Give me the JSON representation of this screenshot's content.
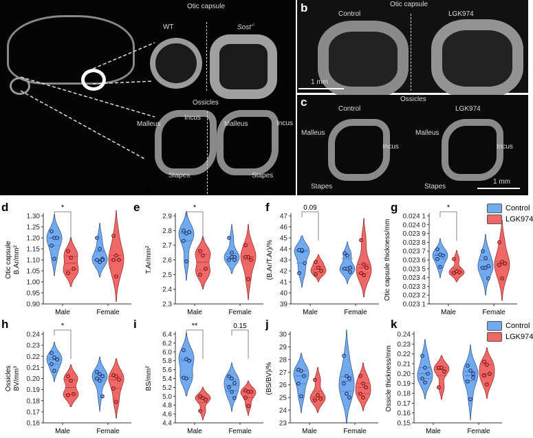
{
  "panels": {
    "a": {
      "label": "a",
      "title_top": "Otic capsule",
      "wt": "WT",
      "sost": "Sost",
      "sost_sup": "-/-",
      "title_bottom": "Ossicles",
      "malleus": "Malleus",
      "incus": "Incus",
      "stapes": "Stapes"
    },
    "b": {
      "label": "b",
      "title": "Otic capsule",
      "control": "Control",
      "lgk": "LGK974",
      "scale": "1 mm"
    },
    "c": {
      "label": "c",
      "title": "Ossicles",
      "control": "Control",
      "lgk": "LGK974",
      "malleus": "Malleus",
      "incus": "Incus",
      "stapes": "Stapes",
      "scale": "1 mm"
    }
  },
  "legend": {
    "control": "Control",
    "lgk": "LGK974",
    "control_color": "#72aaf0",
    "lgk_color": "#ef6868"
  },
  "chart_data": [
    {
      "panel": "d",
      "type": "violin",
      "ylabel": [
        "Otic capsule",
        "B.Ar/mm²"
      ],
      "ylim": [
        0.9,
        1.3
      ],
      "ticks": [
        "0.90",
        "0.95",
        "1.00",
        "1.05",
        "1.10",
        "1.15",
        "1.20",
        "1.25",
        "1.30"
      ],
      "categories": [
        "Male",
        "Female"
      ],
      "series": [
        {
          "name": "Control",
          "values": [
            [
              1.23,
              1.2,
              1.2,
              1.165,
              1.105
            ],
            [
              1.2,
              1.15,
              1.105,
              1.1,
              1.09,
              1.1
            ]
          ]
        },
        {
          "name": "LGK974",
          "values": [
            [
              1.14,
              1.11,
              1.06,
              1.04
            ],
            [
              1.21,
              1.12,
              1.1,
              1.1,
              1.025
            ]
          ]
        }
      ],
      "annotations": [
        {
          "category": "Male",
          "text": "*"
        }
      ]
    },
    {
      "panel": "e",
      "type": "violin",
      "ylabel": [
        "T.Ar/mm²"
      ],
      "ylim": [
        2.3,
        2.9
      ],
      "ticks": [
        "2.3",
        "2.4",
        "2.5",
        "2.6",
        "2.7",
        "2.8",
        "2.9"
      ],
      "categories": [
        "Male",
        "Female"
      ],
      "series": [
        {
          "name": "Control",
          "values": [
            [
              2.8,
              2.78,
              2.79,
              2.73,
              2.59
            ],
            [
              2.75,
              2.65,
              2.62,
              2.6,
              2.62,
              2.6
            ]
          ]
        },
        {
          "name": "LGK974",
          "values": [
            [
              2.66,
              2.63,
              2.54,
              2.5
            ],
            [
              2.7,
              2.62,
              2.6,
              2.62,
              2.47
            ]
          ]
        }
      ],
      "annotations": [
        {
          "category": "Male",
          "text": "*"
        }
      ]
    },
    {
      "panel": "f",
      "type": "violin",
      "ylabel": [
        "(B.Ar/T.Ar)/%"
      ],
      "ylim": [
        39,
        47
      ],
      "ticks": [
        "39",
        "40",
        "41",
        "42",
        "43",
        "44",
        "45",
        "46",
        "47"
      ],
      "categories": [
        "Male",
        "Female"
      ],
      "series": [
        {
          "name": "Control",
          "values": [
            [
              43.9,
              43.8,
              42.7,
              41.8,
              43.9
            ],
            [
              43.6,
              43.4,
              42.3,
              42.2,
              42.2,
              41.9
            ]
          ]
        },
        {
          "name": "LGK974",
          "values": [
            [
              42.8,
              42.3,
              42.0,
              41.7
            ],
            [
              44.8,
              42.6,
              42.3,
              41.8,
              41.6
            ]
          ]
        }
      ],
      "annotations": [
        {
          "category": "Male",
          "text": "0.09"
        }
      ]
    },
    {
      "panel": "g",
      "type": "violin",
      "ylabel": [
        "Otic capsule thickness/mm"
      ],
      "ylim": [
        0.0231,
        0.0241
      ],
      "ticks": [
        "0.023 1",
        "0.023 2",
        "0.023 3",
        "0.023 4",
        "0.023 5",
        "0.023 6",
        "0.023 7",
        "0.023 8",
        "0.023 9",
        "0.024 0",
        "0.024 1"
      ],
      "categories": [
        "Male",
        "Female"
      ],
      "series": [
        {
          "name": "Control",
          "values": [
            [
              0.02372,
              0.02366,
              0.02365,
              0.02361,
              0.02352
            ],
            [
              0.0237,
              0.02362,
              0.02353,
              0.02351,
              0.02351,
              0.02339
            ]
          ]
        },
        {
          "name": "LGK974",
          "values": [
            [
              0.02361,
              0.02347,
              0.02346,
              0.02345
            ],
            [
              0.0238,
              0.02358,
              0.02356,
              0.02354,
              0.02339
            ]
          ]
        }
      ],
      "annotations": [
        {
          "category": "Male",
          "text": "*"
        }
      ],
      "legend": "top-right"
    },
    {
      "panel": "h",
      "type": "violin",
      "ylabel": [
        "Ossicles",
        "BV/mm³"
      ],
      "ylim": [
        0.16,
        0.24
      ],
      "ticks": [
        "0.16",
        "0.17",
        "0.18",
        "0.19",
        "0.20",
        "0.21",
        "0.22",
        "0.23",
        "0.24"
      ],
      "categories": [
        "Male",
        "Female"
      ],
      "series": [
        {
          "name": "Control",
          "values": [
            [
              0.223,
              0.219,
              0.217,
              0.213,
              0.207
            ],
            [
              0.206,
              0.204,
              0.202,
              0.2,
              0.198,
              0.184
            ]
          ]
        },
        {
          "name": "LGK974",
          "values": [
            [
              0.202,
              0.198,
              0.186,
              0.185
            ],
            [
              0.203,
              0.202,
              0.199,
              0.191,
              0.179
            ]
          ]
        }
      ],
      "annotations": [
        {
          "category": "Male",
          "text": "*"
        }
      ]
    },
    {
      "panel": "i",
      "type": "violin",
      "ylabel": [
        "BS/mm²"
      ],
      "ylim": [
        4.4,
        6.4
      ],
      "ticks": [
        "4.4",
        "4.6",
        "4.8",
        "5.0",
        "5.2",
        "5.4",
        "5.6",
        "5.8",
        "6.0",
        "6.2",
        "6.4"
      ],
      "categories": [
        "Male",
        "Female"
      ],
      "series": [
        {
          "name": "Control",
          "values": [
            [
              6.04,
              5.84,
              5.8,
              5.42,
              5.4
            ],
            [
              5.45,
              5.4,
              5.3,
              5.2,
              5.1,
              4.96
            ]
          ]
        },
        {
          "name": "LGK974",
          "values": [
            [
              5.0,
              4.96,
              4.92,
              4.67
            ],
            [
              5.13,
              5.1,
              5.1,
              4.97,
              4.78
            ]
          ]
        }
      ],
      "annotations": [
        {
          "category": "Male",
          "text": "**"
        },
        {
          "category": "Female",
          "text": "0.15"
        }
      ]
    },
    {
      "panel": "j",
      "type": "violin",
      "ylabel": [
        "(BS/BV)/%"
      ],
      "ylim": [
        23,
        30
      ],
      "ticks": [
        "23",
        "24",
        "25",
        "26",
        "27",
        "28",
        "29",
        "30"
      ],
      "categories": [
        "Male",
        "Female"
      ],
      "series": [
        {
          "name": "Control",
          "values": [
            [
              27.2,
              27.1,
              26.7,
              26.1,
              25.1
            ],
            [
              28.3,
              26.7,
              26.5,
              26.1,
              25.3,
              25.0
            ]
          ]
        },
        {
          "name": "LGK974",
          "values": [
            [
              26.4,
              25.2,
              24.9,
              24.8
            ],
            [
              26.7,
              26.1,
              25.8,
              25.3,
              25.0
            ]
          ]
        }
      ],
      "annotations": []
    },
    {
      "panel": "k",
      "type": "violin",
      "ylabel": [
        "Ossicle thickness/mm"
      ],
      "ylim": [
        0.15,
        0.24
      ],
      "ticks": [
        "0.15",
        "0.16",
        "0.17",
        "0.18",
        "0.19",
        "0.20",
        "0.21",
        "0.22",
        "0.23",
        "0.24"
      ],
      "categories": [
        "Male",
        "Female"
      ],
      "series": [
        {
          "name": "Control",
          "values": [
            [
              0.218,
              0.206,
              0.2,
              0.195,
              0.191
            ],
            [
              0.208,
              0.203,
              0.2,
              0.192,
              0.174,
              0.196
            ]
          ]
        },
        {
          "name": "LGK974",
          "values": [
            [
              0.206,
              0.206,
              0.202,
              0.186
            ],
            [
              0.212,
              0.209,
              0.2,
              0.198,
              0.189
            ]
          ]
        }
      ],
      "annotations": [],
      "legend": "top-right"
    }
  ]
}
